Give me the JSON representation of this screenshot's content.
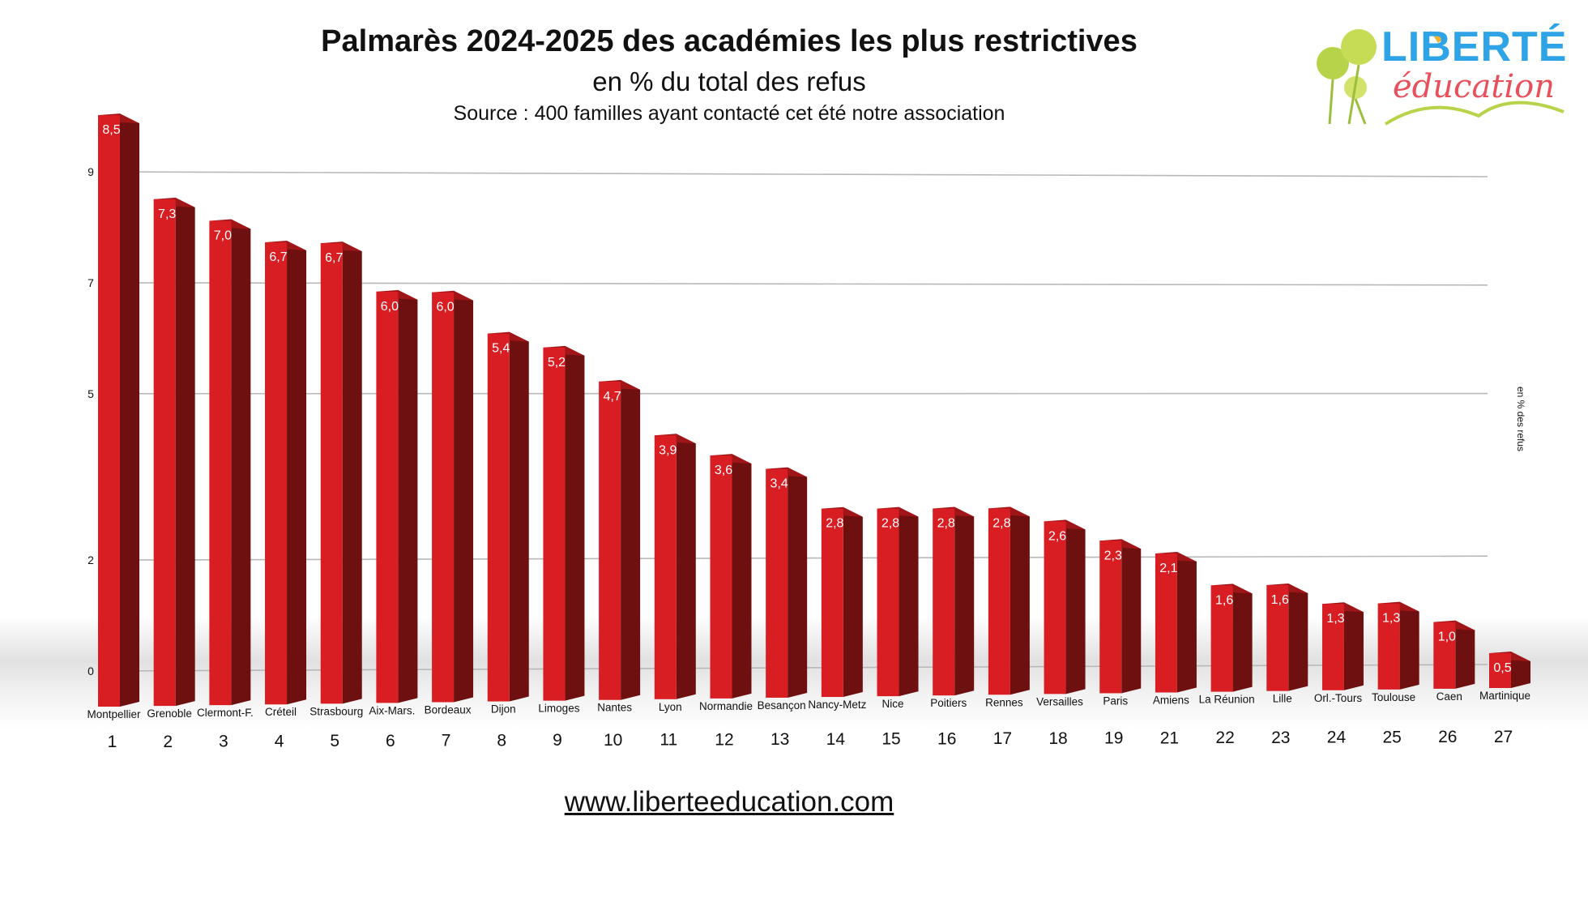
{
  "header": {
    "title": "Palmarès 2024-2025 des académies les plus restrictives",
    "subtitle": "en % du total des refus",
    "source": "Source : 400 familles ayant contacté cet été notre association"
  },
  "footer": {
    "website": "www.liberteeducation.com"
  },
  "logo": {
    "line1": "LIBERTÉ",
    "line2": "éducation"
  },
  "colors": {
    "bar_front": "#d81e22",
    "bar_side": "#6e0f10",
    "bar_top": "#a01618",
    "grid": "#b8b8b8"
  },
  "chart_data": {
    "type": "bar",
    "title": "Palmarès 2024-2025 des académies les plus restrictives",
    "subtitle": "en % du total des refus",
    "ylabel": "en % des refus",
    "ylim": [
      0,
      9
    ],
    "yticks": [
      "0",
      "2",
      "5",
      "7",
      "9"
    ],
    "grid": true,
    "categories": [
      "Montpellier",
      "Grenoble",
      "Clermont-F.",
      "Créteil",
      "Strasbourg",
      "Aix-Mars.",
      "Bordeaux",
      "Dijon",
      "Limoges",
      "Nantes",
      "Lyon",
      "Normandie",
      "Besançon",
      "Nancy-Metz",
      "Nice",
      "Poitiers",
      "Rennes",
      "Versailles",
      "Paris",
      "Amiens",
      "La Réunion",
      "Lille",
      "Orl.-Tours",
      "Toulouse",
      "Caen",
      "Martinique"
    ],
    "ranks": [
      "1",
      "2",
      "3",
      "4",
      "5",
      "6",
      "7",
      "8",
      "9",
      "10",
      "11",
      "12",
      "13",
      "14",
      "15",
      "16",
      "17",
      "18",
      "19",
      "21",
      "22",
      "23",
      "24",
      "25",
      "26",
      "27"
    ],
    "values": [
      8.5,
      7.3,
      7.0,
      6.7,
      6.7,
      6.0,
      6.0,
      5.4,
      5.2,
      4.7,
      3.9,
      3.6,
      3.4,
      2.8,
      2.8,
      2.8,
      2.8,
      2.6,
      2.3,
      2.1,
      1.6,
      1.6,
      1.3,
      1.3,
      1.0,
      0.5
    ],
    "value_labels": [
      "8,5",
      "7,3",
      "7,0",
      "6,7",
      "6,7",
      "6,0",
      "6,0",
      "5,4",
      "5,2",
      "4,7",
      "3,9",
      "3,6",
      "3,4",
      "2,8",
      "2,8",
      "2,8",
      "2,8",
      "2,6",
      "2,3",
      "2,1",
      "1,6",
      "1,6",
      "1,3",
      "1,3",
      "1,0",
      "0,5"
    ]
  }
}
